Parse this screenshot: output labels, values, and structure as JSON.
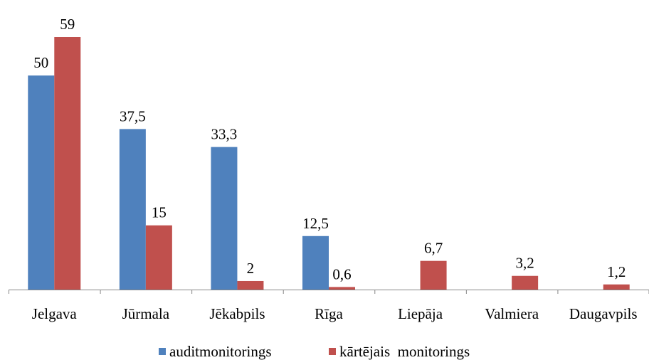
{
  "chart_data": {
    "type": "bar",
    "categories": [
      "Jelgava",
      "Jūrmala",
      "Jēkabpils",
      "Rīga",
      "Liepāja",
      "Valmiera",
      "Daugavpils"
    ],
    "series": [
      {
        "name": "auditmonitorings",
        "color": "#4f81bd",
        "values": [
          50,
          37.5,
          33.3,
          12.5,
          null,
          null,
          null
        ],
        "labels": [
          "50",
          "37,5",
          "33,3",
          "12,5",
          "",
          "",
          ""
        ]
      },
      {
        "name": "kārtējais  monitorings",
        "color": "#c0504d",
        "values": [
          59,
          15,
          2,
          0.6,
          6.7,
          3.2,
          1.2
        ],
        "labels": [
          "59",
          "15",
          "2",
          "0,6",
          "6,7",
          "3,2",
          "1,2"
        ]
      }
    ],
    "ylim": [
      0,
      60
    ],
    "grid": false,
    "legend": "bottom"
  }
}
